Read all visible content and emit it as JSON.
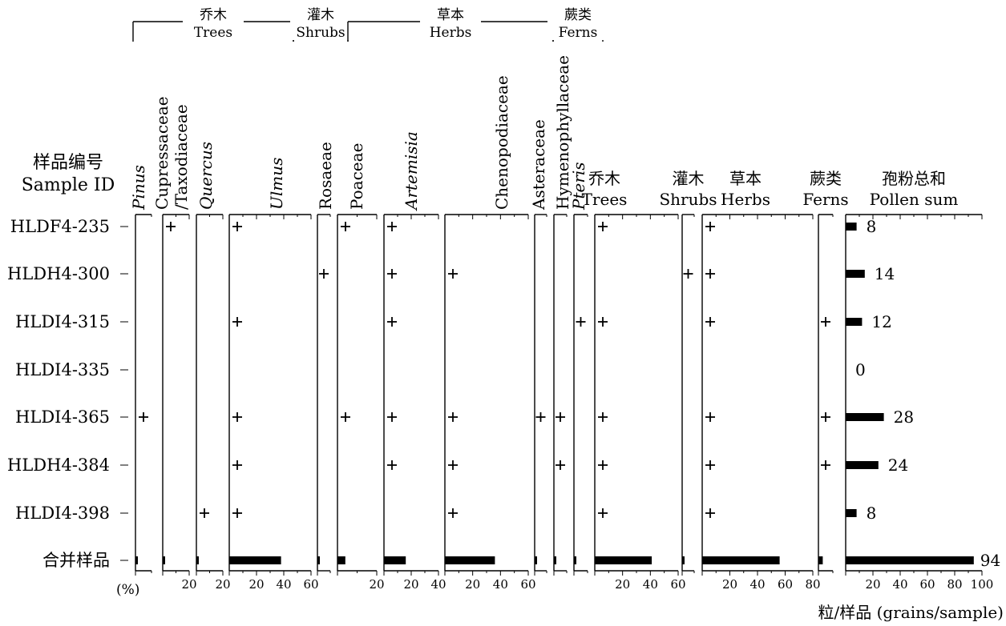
{
  "chart_data": {
    "type": "bar",
    "title": "",
    "y_header": [
      "样品编号",
      "Sample ID"
    ],
    "unit_label": "(%)",
    "count_unit_label": "粒/样品 (grains/sample)",
    "plus_symbol": "+",
    "samples": [
      "HLDF4-235",
      "HLDH4-300",
      "HLDI4-315",
      "HLDI4-335",
      "HLDI4-365",
      "HLDH4-384",
      "HLDI4-398",
      "合并样品"
    ],
    "groups": [
      {
        "id": "trees",
        "cn": "乔木",
        "en": "Trees"
      },
      {
        "id": "shrubs",
        "cn": "灌木",
        "en": "Shrubs"
      },
      {
        "id": "herbs",
        "cn": "草本",
        "en": "Herbs"
      },
      {
        "id": "ferns",
        "cn": "蕨类",
        "en": "Ferns"
      }
    ],
    "taxa": [
      {
        "name": "Pinus",
        "italic": true,
        "group": "trees",
        "max": 10,
        "ticks": [],
        "presence": [
          false,
          false,
          false,
          false,
          true,
          false,
          false
        ],
        "combined": 1
      },
      {
        "name": "Cupressaceae",
        "name2": "/Taxodiaceae",
        "italic": false,
        "group": "trees",
        "max": 20,
        "ticks": [
          "20"
        ],
        "presence": [
          true,
          false,
          false,
          false,
          false,
          false,
          false
        ],
        "combined": 1
      },
      {
        "name": "Quercus",
        "italic": true,
        "group": "trees",
        "max": 20,
        "ticks": [
          "20"
        ],
        "presence": [
          false,
          false,
          false,
          false,
          false,
          false,
          true
        ],
        "combined": 1
      },
      {
        "name": "Ulmus",
        "italic": true,
        "group": "trees",
        "max": 60,
        "ticks": [
          "20",
          "40",
          "60"
        ],
        "presence": [
          true,
          false,
          true,
          false,
          true,
          true,
          true
        ],
        "combined": 38
      },
      {
        "name": "Rosaeae",
        "italic": false,
        "group": "shrubs",
        "max": 10,
        "ticks": [],
        "presence": [
          false,
          true,
          false,
          false,
          false,
          false,
          false
        ],
        "combined": 1
      },
      {
        "name": "Poaceae",
        "italic": false,
        "group": "herbs",
        "max": 20,
        "ticks": [
          "20"
        ],
        "presence": [
          true,
          false,
          false,
          false,
          true,
          false,
          false
        ],
        "combined": 4
      },
      {
        "name": "Artemisia",
        "italic": true,
        "group": "herbs",
        "max": 40,
        "ticks": [
          "20",
          "40"
        ],
        "presence": [
          true,
          true,
          true,
          false,
          true,
          true,
          false
        ],
        "combined": 16
      },
      {
        "name": "Chenopodiaceae",
        "italic": false,
        "group": "herbs",
        "max": 60,
        "ticks": [
          "20",
          "40",
          "60"
        ],
        "presence": [
          false,
          true,
          false,
          false,
          true,
          true,
          true
        ],
        "combined": 36
      },
      {
        "name": "Asteraceae",
        "italic": false,
        "group": "herbs",
        "max": 10,
        "ticks": [],
        "presence": [
          false,
          false,
          false,
          false,
          true,
          false,
          false
        ],
        "combined": 1
      },
      {
        "name": "Hymenophyllaceae",
        "italic": false,
        "group": "ferns",
        "max": 10,
        "ticks": [],
        "presence": [
          false,
          false,
          false,
          false,
          true,
          true,
          false
        ],
        "combined": 1
      },
      {
        "name": "Pteris",
        "italic": true,
        "group": "ferns",
        "max": 10,
        "ticks": [],
        "presence": [
          false,
          false,
          true,
          false,
          false,
          false,
          false
        ],
        "combined": 1
      }
    ],
    "summary": [
      {
        "cn": "乔木",
        "en": "Trees",
        "max": 60,
        "ticks": [
          "20",
          "40",
          "60"
        ],
        "presence": [
          true,
          false,
          true,
          false,
          true,
          true,
          true
        ],
        "combined": 41
      },
      {
        "cn": "灌木",
        "en": "Shrubs",
        "max": 10,
        "ticks": [],
        "presence": [
          false,
          true,
          false,
          false,
          false,
          false,
          false
        ],
        "combined": 1
      },
      {
        "cn": "草本",
        "en": "Herbs",
        "max": 80,
        "ticks": [
          "20",
          "40",
          "60",
          "80"
        ],
        "presence": [
          true,
          true,
          true,
          false,
          true,
          true,
          true
        ],
        "combined": 56
      },
      {
        "cn": "蕨类",
        "en": "Ferns",
        "max": 10,
        "ticks": [],
        "presence": [
          false,
          false,
          true,
          false,
          true,
          true,
          false
        ],
        "combined": 3
      }
    ],
    "pollen_sum": {
      "cn": "孢粉总和",
      "en": "Pollen sum",
      "max": 100,
      "ticks": [
        "20",
        "40",
        "60",
        "80",
        "100"
      ],
      "values": [
        8,
        14,
        12,
        0,
        28,
        24,
        8,
        94
      ]
    }
  }
}
